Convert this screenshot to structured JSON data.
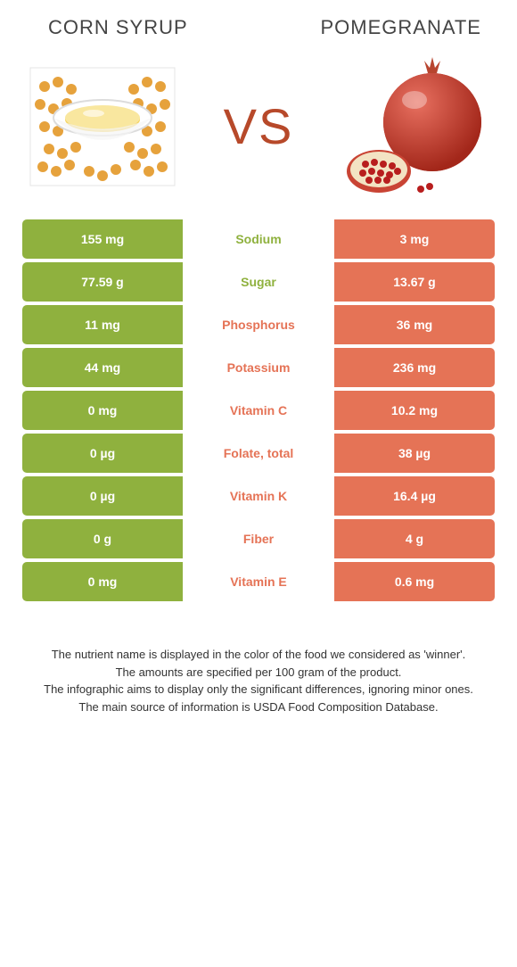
{
  "colors": {
    "left": "#8fb13e",
    "right": "#e57356",
    "vs": "#b7492a"
  },
  "left_title": "CORN SYRUP",
  "right_title": "POMEGRANATE",
  "vs_label": "VS",
  "rows": [
    {
      "left": "155 mg",
      "label": "Sodium",
      "right": "3 mg",
      "winner": "left"
    },
    {
      "left": "77.59 g",
      "label": "Sugar",
      "right": "13.67 g",
      "winner": "left"
    },
    {
      "left": "11 mg",
      "label": "Phosphorus",
      "right": "36 mg",
      "winner": "right"
    },
    {
      "left": "44 mg",
      "label": "Potassium",
      "right": "236 mg",
      "winner": "right"
    },
    {
      "left": "0 mg",
      "label": "Vitamin C",
      "right": "10.2 mg",
      "winner": "right"
    },
    {
      "left": "0 µg",
      "label": "Folate, total",
      "right": "38 µg",
      "winner": "right"
    },
    {
      "left": "0 µg",
      "label": "Vitamin K",
      "right": "16.4 µg",
      "winner": "right"
    },
    {
      "left": "0 g",
      "label": "Fiber",
      "right": "4 g",
      "winner": "right"
    },
    {
      "left": "0 mg",
      "label": "Vitamin E",
      "right": "0.6 mg",
      "winner": "right"
    }
  ],
  "footnotes": [
    "The nutrient name is displayed in the color of the food we considered as 'winner'.",
    "The amounts are specified per 100 gram of the product.",
    "The infographic aims to display only the significant differences, ignoring minor ones.",
    "The main source of information is USDA Food Composition Database."
  ]
}
